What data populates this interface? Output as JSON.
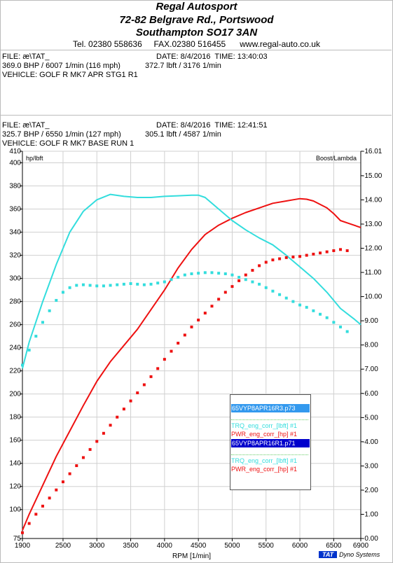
{
  "header": {
    "company": "Regal Autosport",
    "address1": "72-82 Belgrave Rd., Portswood",
    "address2": "Southampton SO17 3AN",
    "tel": "Tel. 02380 558636",
    "fax": "FAX.02380 516455",
    "web": "www.regal-auto.co.uk"
  },
  "runs": [
    {
      "file": "FILE: æ\\TAT_",
      "datetime": "DATE: 8/4/2016  TIME: 13:40:03",
      "power": "369.0 BHP / 6007 1/min (116 mph)",
      "torque": "372.7 lbft / 3176 1/min",
      "vehicle": "VEHICLE: GOLF R MK7 APR STG1 R1"
    },
    {
      "file": "FILE: æ\\TAT_",
      "datetime": "DATE: 8/4/2016  TIME: 12:41:51",
      "power": "325.7 BHP / 6550 1/min (127 mph)",
      "torque": "305.1 lbft / 4587 1/min",
      "vehicle": "VEHICLE: GOLF R MK7 BASE RUN 1"
    }
  ],
  "legend": {
    "run1_name": "65VYP8APR16R3.p73",
    "run1_torque": "TRQ_eng_corr_[lbft] #1",
    "run1_power": "PWR_eng_corr_[hp] #1",
    "run2_name": "65VYP8APR16R1.p71",
    "run2_torque": "TRQ_eng_corr_[lbft] #1",
    "run2_power": "PWR_eng_corr_[hp] #1"
  },
  "brand": {
    "tat": "TAT",
    "name": "Dyno Systems"
  },
  "colors": {
    "power": "#ee1111",
    "torque": "#33dddd",
    "run1_highlight": "#3399ee",
    "run2_highlight": "#0000cc"
  },
  "chart_data": {
    "type": "line",
    "xlabel": "RPM  [1/min]",
    "ylabel": "hp/lbft",
    "y2label": "Boost/Lambda",
    "xlim": [
      1900,
      6900
    ],
    "ylim": [
      75,
      410
    ],
    "y2lim": [
      0.0,
      16.01
    ],
    "x_ticks": [
      1900,
      2500,
      3000,
      3500,
      4000,
      4500,
      5000,
      5500,
      6000,
      6500,
      6900
    ],
    "y_ticks": [
      75,
      100,
      120,
      140,
      160,
      180,
      200,
      220,
      240,
      260,
      280,
      300,
      320,
      340,
      360,
      380,
      400,
      410
    ],
    "y_tick_labels": [
      "75",
      "100",
      "120",
      "140",
      "160",
      "180",
      "200",
      "220",
      "240",
      "260",
      "280",
      "300",
      "320",
      "340",
      "360",
      "380",
      "400",
      "410"
    ],
    "y2_ticks": [
      0.0,
      1.0,
      2.0,
      3.0,
      4.0,
      5.0,
      6.0,
      7.0,
      8.0,
      9.0,
      10.0,
      11.0,
      12.0,
      13.0,
      14.0,
      15.0,
      16.01
    ],
    "y2_tick_labels": [
      "0.00",
      "1.00",
      "2.00",
      "3.00",
      "4.00",
      "5.00",
      "6.00",
      "7.00",
      "8.00",
      "9.00",
      "10.00",
      "11.00",
      "12.00",
      "13.00",
      "14.00",
      "15.00",
      "16.01"
    ],
    "grid": true,
    "series": [
      {
        "legend": "PWR_eng_corr_[hp] #1 (65VYP8APR16R3.p73)",
        "style": "line",
        "color": "#ee1111",
        "x": [
          1900,
          2000,
          2200,
          2400,
          2600,
          2800,
          3000,
          3200,
          3400,
          3600,
          3800,
          4000,
          4200,
          4400,
          4600,
          4800,
          5000,
          5200,
          5400,
          5600,
          5800,
          5900,
          6000,
          6100,
          6200,
          6400,
          6500,
          6600,
          6700,
          6800,
          6900
        ],
        "y": [
          82,
          96,
          121,
          146,
          168,
          190,
          211,
          228,
          242,
          256,
          273,
          290,
          309,
          325,
          338,
          346,
          352,
          357,
          361,
          365,
          367,
          368,
          369,
          368.5,
          367,
          361,
          356,
          350,
          348,
          346,
          344
        ]
      },
      {
        "legend": "TRQ_eng_corr_[lbft] #1 (65VYP8APR16R3.p73)",
        "style": "line",
        "color": "#33dddd",
        "x": [
          1900,
          2000,
          2200,
          2400,
          2600,
          2800,
          3000,
          3200,
          3400,
          3600,
          3800,
          4000,
          4200,
          4400,
          4500,
          4600,
          4800,
          5000,
          5200,
          5400,
          5600,
          5800,
          6000,
          6200,
          6400,
          6600,
          6800,
          6900
        ],
        "y": [
          222,
          245,
          280,
          312,
          340,
          358,
          368,
          372.7,
          371,
          370,
          370,
          371,
          371.5,
          372,
          372,
          370,
          360,
          350,
          342,
          335,
          329,
          320,
          310,
          300,
          288,
          274,
          265,
          260
        ]
      },
      {
        "legend": "PWR_eng_corr_[hp] #1 (65VYP8APR16R1.p71)",
        "style": "markers",
        "color": "#ee1111",
        "x": [
          1900,
          2000,
          2100,
          2200,
          2300,
          2400,
          2500,
          2600,
          2700,
          2800,
          2900,
          3000,
          3100,
          3200,
          3300,
          3400,
          3500,
          3600,
          3700,
          3800,
          3900,
          4000,
          4100,
          4200,
          4300,
          4400,
          4500,
          4600,
          4700,
          4800,
          4900,
          5000,
          5100,
          5200,
          5300,
          5400,
          5500,
          5600,
          5700,
          5800,
          5900,
          6000,
          6100,
          6200,
          6300,
          6400,
          6500,
          6600,
          6700
        ],
        "y": [
          80,
          88,
          96,
          103,
          110,
          117,
          124,
          131,
          138,
          145,
          152,
          159,
          166,
          173,
          180,
          187,
          194,
          201,
          208,
          215,
          222,
          230,
          237,
          244,
          251,
          258,
          264,
          270,
          276,
          282,
          288,
          293,
          298,
          303,
          307,
          311,
          314,
          316,
          317,
          318,
          318.5,
          319,
          320,
          321,
          322,
          323,
          324,
          325,
          324
        ]
      },
      {
        "legend": "TRQ_eng_corr_[lbft] #1 (65VYP8APR16R1.p71)",
        "style": "markers",
        "color": "#33dddd",
        "x": [
          1900,
          2000,
          2100,
          2200,
          2300,
          2400,
          2500,
          2600,
          2700,
          2800,
          2900,
          3000,
          3100,
          3200,
          3300,
          3400,
          3500,
          3600,
          3700,
          3800,
          3900,
          4000,
          4100,
          4200,
          4300,
          4400,
          4500,
          4600,
          4700,
          4800,
          4900,
          5000,
          5100,
          5200,
          5300,
          5400,
          5500,
          5600,
          5700,
          5800,
          5900,
          6000,
          6100,
          6200,
          6300,
          6400,
          6500,
          6600,
          6700
        ],
        "y": [
          225,
          238,
          250,
          262,
          272,
          281,
          288,
          292,
          294,
          294.5,
          294,
          293.5,
          293.5,
          294,
          294.5,
          295,
          295.5,
          295,
          294.5,
          295,
          296,
          297,
          299,
          301,
          303,
          304,
          304.5,
          305,
          305,
          304.5,
          304,
          303,
          301,
          299,
          297,
          295,
          292,
          289,
          286,
          283,
          280,
          277,
          275,
          272,
          269,
          266,
          262,
          258,
          254
        ]
      }
    ]
  }
}
